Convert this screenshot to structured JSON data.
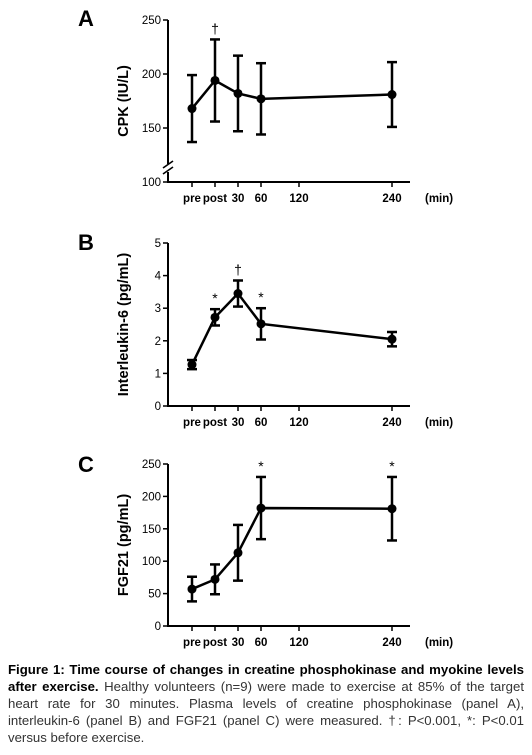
{
  "chart_data": [
    {
      "type": "line",
      "panel_label": "A",
      "ylabel": "CPK (IU/L)",
      "xlabel": "(min)",
      "x_ticks": [
        "pre",
        "post",
        "30",
        "60",
        "120",
        "240"
      ],
      "y_ticks": [
        100,
        150,
        200,
        250
      ],
      "ylim": [
        100,
        250
      ],
      "axis_break": true,
      "x": [
        -10,
        0,
        30,
        60,
        240
      ],
      "values": [
        168,
        194,
        182,
        177,
        181
      ],
      "error": [
        31,
        38,
        35,
        33,
        30
      ],
      "annotations": [
        "",
        "†",
        "",
        "",
        ""
      ],
      "grid": false
    },
    {
      "type": "line",
      "panel_label": "B",
      "ylabel": "Interleukin-6 (pg/mL)",
      "xlabel": "(min)",
      "x_ticks": [
        "pre",
        "post",
        "30",
        "60",
        "120",
        "240"
      ],
      "y_ticks": [
        0,
        1,
        2,
        3,
        4,
        5
      ],
      "ylim": [
        0,
        5
      ],
      "x": [
        -10,
        0,
        30,
        60,
        240
      ],
      "values": [
        1.27,
        2.72,
        3.45,
        2.52,
        2.05
      ],
      "error": [
        0.14,
        0.25,
        0.4,
        0.48,
        0.22
      ],
      "annotations": [
        "",
        "*",
        "†",
        "*",
        ""
      ],
      "grid": false
    },
    {
      "type": "line",
      "panel_label": "C",
      "ylabel": "FGF21 (pg/mL)",
      "xlabel": "(min)",
      "x_ticks": [
        "pre",
        "post",
        "30",
        "60",
        "120",
        "240"
      ],
      "y_ticks": [
        0,
        50,
        100,
        150,
        200,
        250
      ],
      "ylim": [
        0,
        250
      ],
      "x": [
        -10,
        0,
        30,
        60,
        240
      ],
      "values": [
        57,
        72,
        113,
        182,
        181
      ],
      "error": [
        19,
        23,
        43,
        48,
        49
      ],
      "annotations": [
        "",
        "",
        "",
        "*",
        "*"
      ],
      "grid": false
    }
  ],
  "caption": {
    "bold": "Figure 1: Time course of changes in creatine phosphokinase and myokine levels after exercise.",
    "text": " Healthy volunteers (n=9) were made to exercise at 85% of the target heart rate for 30 minutes.  Plasma levels of creatine phosphokinase (panel A), interleukin-6 (panel B) and FGF21 (panel C) were measured.  †: P<0.001, *: P<0.01 versus before exercise."
  }
}
